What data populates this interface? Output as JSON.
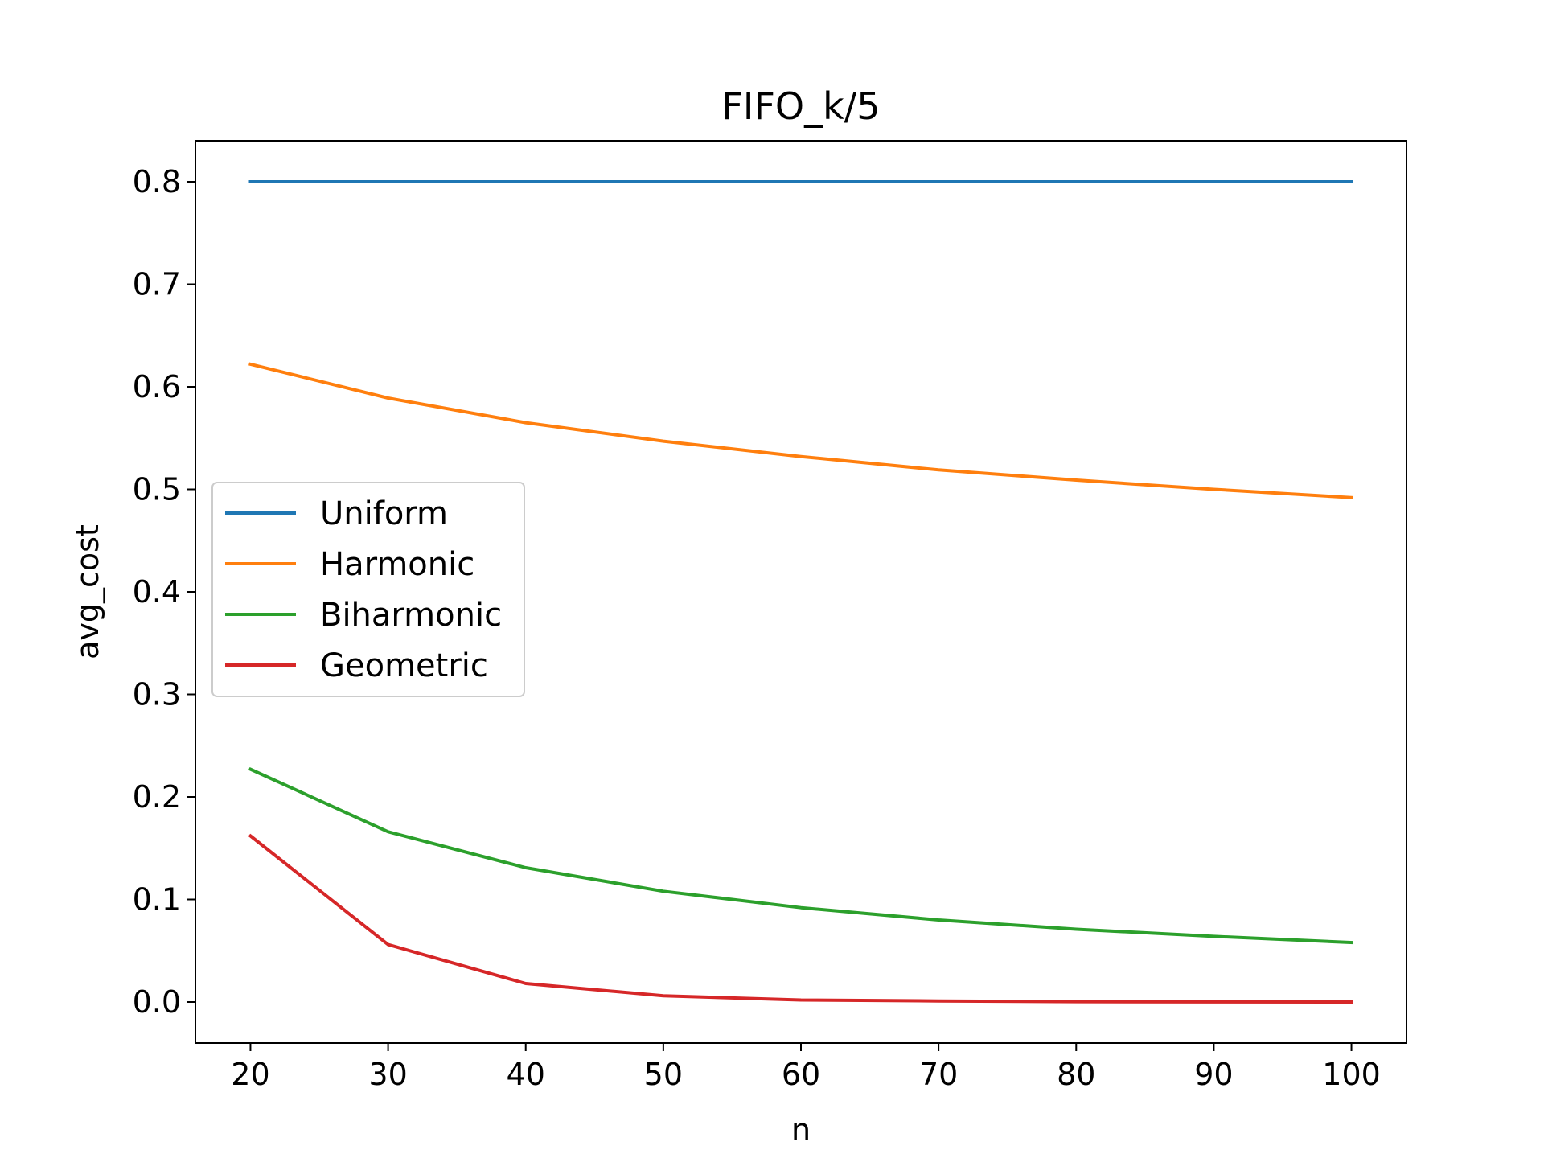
{
  "chart_data": {
    "type": "line",
    "title": "FIFO_k/5",
    "xlabel": "n",
    "ylabel": "avg_cost",
    "x": [
      20,
      30,
      40,
      50,
      60,
      70,
      80,
      90,
      100
    ],
    "xlim": [
      16,
      104
    ],
    "ylim": [
      -0.04,
      0.84
    ],
    "xticks": [
      "20",
      "30",
      "40",
      "50",
      "60",
      "70",
      "80",
      "90",
      "100"
    ],
    "yticks": [
      "0.0",
      "0.1",
      "0.2",
      "0.3",
      "0.4",
      "0.5",
      "0.6",
      "0.7",
      "0.8"
    ],
    "grid": false,
    "legend_position": "center-left",
    "series": [
      {
        "name": "Uniform",
        "color": "#1f77b4",
        "values": [
          0.8,
          0.8,
          0.8,
          0.8,
          0.8,
          0.8,
          0.8,
          0.8,
          0.8
        ]
      },
      {
        "name": "Harmonic",
        "color": "#ff7f0e",
        "values": [
          0.622,
          0.589,
          0.565,
          0.547,
          0.532,
          0.519,
          0.509,
          0.5,
          0.492
        ]
      },
      {
        "name": "Biharmonic",
        "color": "#2ca02c",
        "values": [
          0.227,
          0.166,
          0.131,
          0.108,
          0.092,
          0.08,
          0.071,
          0.064,
          0.058
        ]
      },
      {
        "name": "Geometric",
        "color": "#d62728",
        "values": [
          0.162,
          0.056,
          0.018,
          0.006,
          0.002,
          0.001,
          0.0003,
          0.0001,
          0.0
        ]
      }
    ]
  }
}
